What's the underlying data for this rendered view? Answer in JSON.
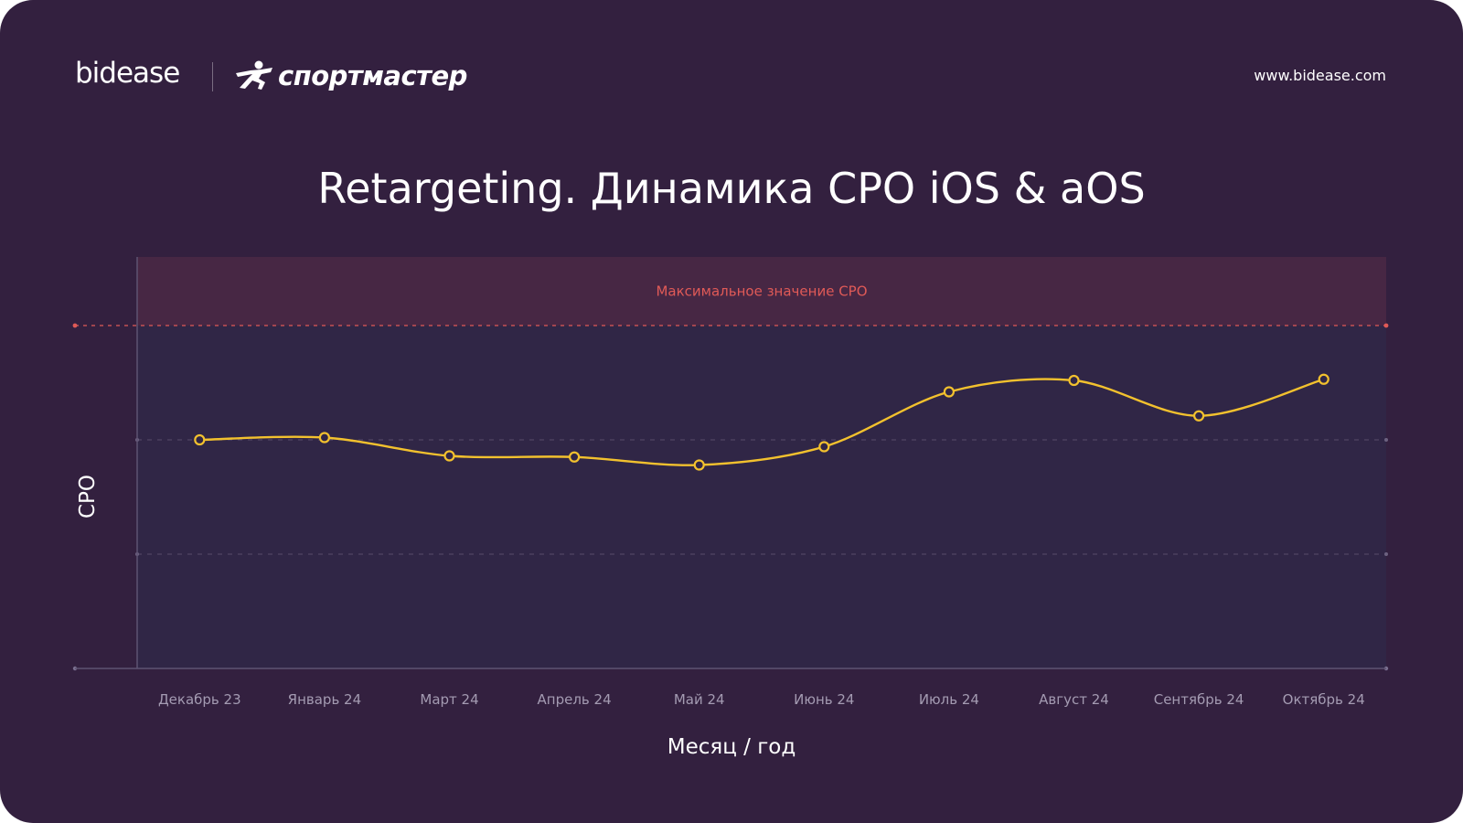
{
  "header": {
    "brand_primary": "bidease",
    "brand_partner": "спортмастер",
    "website": "www.bidease.com"
  },
  "colors": {
    "background": "#33203f",
    "plot_area": "#302646",
    "max_zone": "#472744",
    "line": "#f2c12e",
    "max_line": "#e05a57",
    "text": "#ffffff",
    "tick_text": "#a49bb2"
  },
  "chart_data": {
    "type": "line",
    "title": "Retargeting. Динамика CPO iOS & aOS",
    "xlabel": "Месяц / год",
    "ylabel": "CPO",
    "categories": [
      "Декабрь 23",
      "Январь 24",
      "Март 24",
      "Апрель 24",
      "Май 24",
      "Июнь 24",
      "Июль 24",
      "Август 24",
      "Сентябрь 24",
      "Октябрь 24"
    ],
    "series": [
      {
        "values": [
          2.0,
          2.02,
          1.86,
          1.85,
          1.78,
          1.94,
          2.42,
          2.52,
          2.21,
          2.53
        ]
      }
    ],
    "ylim": [
      0,
      3.6
    ],
    "y_gridlines": [
      1,
      2
    ],
    "y_tick_labels": false,
    "max_threshold": {
      "value": 3.0,
      "label": "Максимальное значение CPO"
    },
    "grid": true,
    "legend": "none"
  }
}
